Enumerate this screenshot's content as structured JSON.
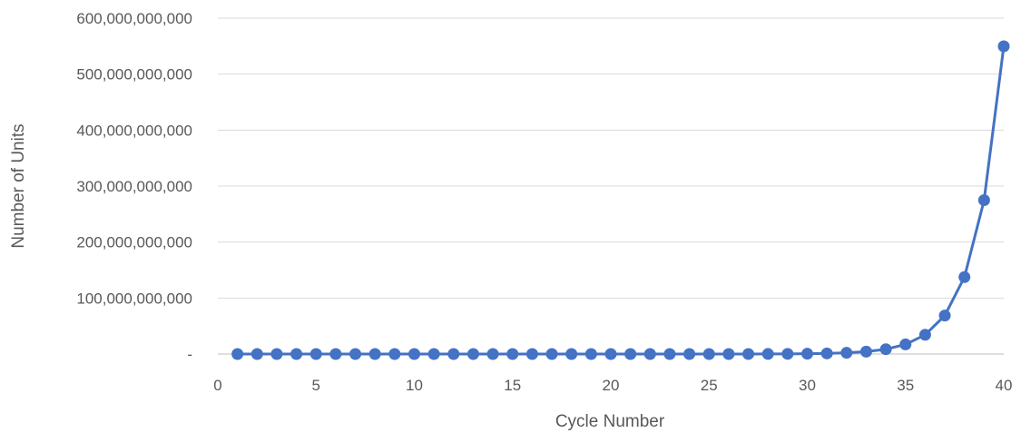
{
  "chart_data": {
    "type": "line",
    "title": "",
    "xlabel": "Cycle Number",
    "ylabel": "Number of Units",
    "xlim": [
      0,
      40
    ],
    "ylim": [
      0,
      600000000000
    ],
    "x_ticks": [
      0,
      5,
      10,
      15,
      20,
      25,
      30,
      35,
      40
    ],
    "x_tick_labels": [
      "0",
      "5",
      "10",
      "15",
      "20",
      "25",
      "30",
      "35",
      "40"
    ],
    "y_ticks": [
      0,
      100000000000,
      200000000000,
      300000000000,
      400000000000,
      500000000000,
      600000000000
    ],
    "y_tick_labels": [
      "-",
      "100,000,000,000",
      "200,000,000,000",
      "300,000,000,000",
      "400,000,000,000",
      "500,000,000,000",
      "600,000,000,000"
    ],
    "grid": "horizontal",
    "legend": "none",
    "series": [
      {
        "color": "#4472c4",
        "x": [
          1,
          2,
          3,
          4,
          5,
          6,
          7,
          8,
          9,
          10,
          11,
          12,
          13,
          14,
          15,
          16,
          17,
          18,
          19,
          20,
          21,
          22,
          23,
          24,
          25,
          26,
          27,
          28,
          29,
          30,
          31,
          32,
          33,
          34,
          35,
          36,
          37,
          38,
          39,
          40
        ],
        "values": [
          1,
          2,
          4,
          8,
          16,
          32,
          64,
          128,
          256,
          512,
          1024,
          2048,
          4096,
          8192,
          16384,
          32768,
          65536,
          131072,
          262144,
          524288,
          1048576,
          2097152,
          4194304,
          8388608,
          16777216,
          33554432,
          67108864,
          134217728,
          268435456,
          536870912,
          1073741824,
          2147483648,
          4294967296,
          8589934592,
          17179869184,
          34359738368,
          68719476736,
          137438953472,
          274877906944,
          549755813888
        ]
      }
    ]
  }
}
